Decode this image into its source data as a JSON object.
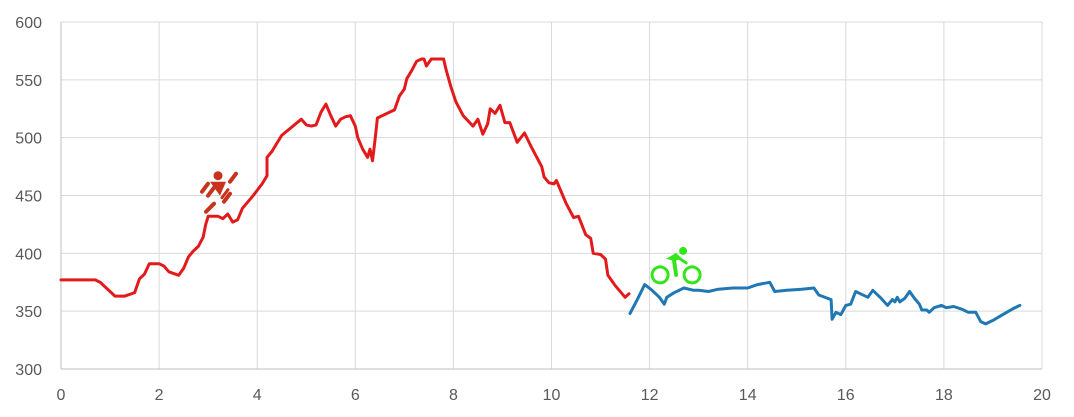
{
  "chart_data": {
    "type": "line",
    "xlim": [
      0,
      20
    ],
    "ylim": [
      300,
      600
    ],
    "x_ticks": [
      0,
      2,
      4,
      6,
      8,
      10,
      12,
      14,
      16,
      18,
      20
    ],
    "y_ticks": [
      300,
      350,
      400,
      450,
      500,
      550,
      600
    ],
    "grid": true,
    "colors": {
      "run": "#e31a1c",
      "bike": "#1f78b4",
      "runner_icon": "#c8331e",
      "bike_icon": "#33e51a",
      "grid": "#d9d9d9",
      "tick_text": "#595959"
    },
    "icons": [
      {
        "name": "runner-icon",
        "series": "run",
        "x": 3.2,
        "y": 455
      },
      {
        "name": "cyclist-icon",
        "series": "bike",
        "x": 12.5,
        "y": 390
      }
    ],
    "series": [
      {
        "id": "run",
        "color": "#e31a1c",
        "points": [
          [
            0,
            377
          ],
          [
            0.7,
            377
          ],
          [
            0.8,
            375
          ],
          [
            1.1,
            363
          ],
          [
            1.3,
            363
          ],
          [
            1.5,
            366
          ],
          [
            1.6,
            378
          ],
          [
            1.7,
            382
          ],
          [
            1.8,
            391
          ],
          [
            2.0,
            391
          ],
          [
            2.1,
            389
          ],
          [
            2.2,
            384
          ],
          [
            2.4,
            381
          ],
          [
            2.5,
            387
          ],
          [
            2.6,
            397
          ],
          [
            2.7,
            402
          ],
          [
            2.8,
            406
          ],
          [
            2.9,
            414
          ],
          [
            2.95,
            425
          ],
          [
            3.0,
            432
          ],
          [
            3.2,
            432
          ],
          [
            3.3,
            430
          ],
          [
            3.4,
            434
          ],
          [
            3.5,
            427
          ],
          [
            3.6,
            429
          ],
          [
            3.7,
            439
          ],
          [
            3.9,
            449
          ],
          [
            4.1,
            460
          ],
          [
            4.2,
            467
          ],
          [
            4.2,
            483
          ],
          [
            4.3,
            488
          ],
          [
            4.4,
            495
          ],
          [
            4.5,
            502
          ],
          [
            4.7,
            509
          ],
          [
            4.9,
            516
          ],
          [
            5.0,
            511
          ],
          [
            5.1,
            510
          ],
          [
            5.2,
            511
          ],
          [
            5.3,
            522
          ],
          [
            5.4,
            529
          ],
          [
            5.5,
            519
          ],
          [
            5.6,
            510
          ],
          [
            5.7,
            516
          ],
          [
            5.8,
            518
          ],
          [
            5.9,
            519
          ],
          [
            6.0,
            510
          ],
          [
            6.05,
            500
          ],
          [
            6.15,
            490
          ],
          [
            6.25,
            483
          ],
          [
            6.3,
            490
          ],
          [
            6.35,
            480
          ],
          [
            6.4,
            497
          ],
          [
            6.45,
            517
          ],
          [
            6.6,
            520
          ],
          [
            6.8,
            524
          ],
          [
            6.9,
            536
          ],
          [
            7.0,
            542
          ],
          [
            7.05,
            551
          ],
          [
            7.15,
            558
          ],
          [
            7.25,
            566
          ],
          [
            7.35,
            568
          ],
          [
            7.4,
            568
          ],
          [
            7.45,
            562
          ],
          [
            7.55,
            568
          ],
          [
            7.8,
            568
          ],
          [
            7.85,
            559
          ],
          [
            7.95,
            544
          ],
          [
            8.05,
            531
          ],
          [
            8.2,
            519
          ],
          [
            8.4,
            510
          ],
          [
            8.5,
            516
          ],
          [
            8.6,
            503
          ],
          [
            8.7,
            512
          ],
          [
            8.75,
            525
          ],
          [
            8.85,
            521
          ],
          [
            8.95,
            528
          ],
          [
            9.05,
            513
          ],
          [
            9.15,
            513
          ],
          [
            9.3,
            496
          ],
          [
            9.45,
            504
          ],
          [
            9.6,
            491
          ],
          [
            9.8,
            475
          ],
          [
            9.85,
            466
          ],
          [
            9.95,
            461
          ],
          [
            10.05,
            460
          ],
          [
            10.1,
            463
          ],
          [
            10.2,
            453
          ],
          [
            10.3,
            443
          ],
          [
            10.45,
            431
          ],
          [
            10.55,
            432
          ],
          [
            10.7,
            416
          ],
          [
            10.8,
            413
          ],
          [
            10.85,
            400
          ],
          [
            11.0,
            399
          ],
          [
            11.1,
            395
          ],
          [
            11.15,
            381
          ],
          [
            11.3,
            372
          ],
          [
            11.5,
            362
          ],
          [
            11.58,
            365
          ]
        ]
      },
      {
        "id": "bike",
        "color": "#1f78b4",
        "points": [
          [
            11.6,
            348
          ],
          [
            11.75,
            360
          ],
          [
            11.9,
            373
          ],
          [
            12.05,
            368
          ],
          [
            12.2,
            362
          ],
          [
            12.3,
            356
          ],
          [
            12.35,
            362
          ],
          [
            12.5,
            366
          ],
          [
            12.7,
            370
          ],
          [
            12.9,
            368
          ],
          [
            13.0,
            368
          ],
          [
            13.2,
            367
          ],
          [
            13.4,
            369
          ],
          [
            13.7,
            370
          ],
          [
            14.0,
            370
          ],
          [
            14.2,
            373
          ],
          [
            14.45,
            375
          ],
          [
            14.55,
            367
          ],
          [
            14.8,
            368
          ],
          [
            15.1,
            369
          ],
          [
            15.35,
            370
          ],
          [
            15.45,
            364
          ],
          [
            15.7,
            360
          ],
          [
            15.72,
            343
          ],
          [
            15.8,
            349
          ],
          [
            15.9,
            347
          ],
          [
            16.0,
            355
          ],
          [
            16.1,
            356
          ],
          [
            16.2,
            367
          ],
          [
            16.3,
            365
          ],
          [
            16.45,
            362
          ],
          [
            16.55,
            368
          ],
          [
            16.7,
            362
          ],
          [
            16.85,
            355
          ],
          [
            16.95,
            360
          ],
          [
            17.0,
            358
          ],
          [
            17.05,
            362
          ],
          [
            17.1,
            358
          ],
          [
            17.2,
            361
          ],
          [
            17.3,
            367
          ],
          [
            17.4,
            361
          ],
          [
            17.5,
            356
          ],
          [
            17.55,
            351
          ],
          [
            17.65,
            351
          ],
          [
            17.7,
            349
          ],
          [
            17.8,
            353
          ],
          [
            17.95,
            355
          ],
          [
            18.05,
            353
          ],
          [
            18.2,
            354
          ],
          [
            18.35,
            352
          ],
          [
            18.5,
            349
          ],
          [
            18.65,
            349
          ],
          [
            18.75,
            341
          ],
          [
            18.85,
            339
          ],
          [
            19.0,
            342
          ],
          [
            19.2,
            347
          ],
          [
            19.4,
            352
          ],
          [
            19.55,
            355
          ]
        ]
      }
    ]
  }
}
